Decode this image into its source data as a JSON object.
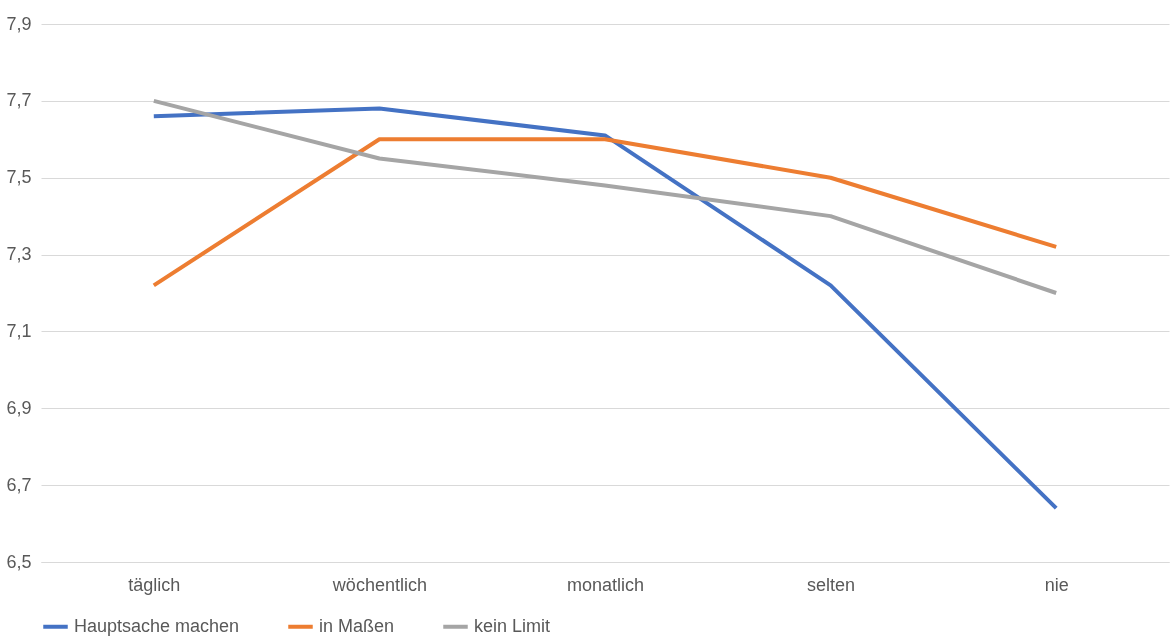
{
  "chart_data": {
    "type": "line",
    "categories": [
      "täglich",
      "wöchentlich",
      "monatlich",
      "selten",
      "nie"
    ],
    "series": [
      {
        "name": "Hauptsache machen",
        "color": "#4472c4",
        "values": [
          7.66,
          7.68,
          7.61,
          7.22,
          6.64
        ]
      },
      {
        "name": "in Maßen",
        "color": "#ed7d31",
        "values": [
          7.22,
          7.6,
          7.6,
          7.5,
          7.32
        ]
      },
      {
        "name": "kein Limit",
        "color": "#a5a5a5",
        "values": [
          7.7,
          7.55,
          7.48,
          7.4,
          7.2
        ]
      }
    ],
    "ylim": [
      6.5,
      7.9
    ],
    "yticks": [
      {
        "value": 6.5,
        "label": "6,5"
      },
      {
        "value": 6.7,
        "label": "6,7"
      },
      {
        "value": 6.9,
        "label": "6,9"
      },
      {
        "value": 7.1,
        "label": "7,1"
      },
      {
        "value": 7.3,
        "label": "7,3"
      },
      {
        "value": 7.5,
        "label": "7,5"
      },
      {
        "value": 7.7,
        "label": "7,7"
      },
      {
        "value": 7.9,
        "label": "7,9"
      }
    ],
    "grid": "y",
    "legend": "bottom",
    "marker": "none",
    "line_style": "solid"
  }
}
